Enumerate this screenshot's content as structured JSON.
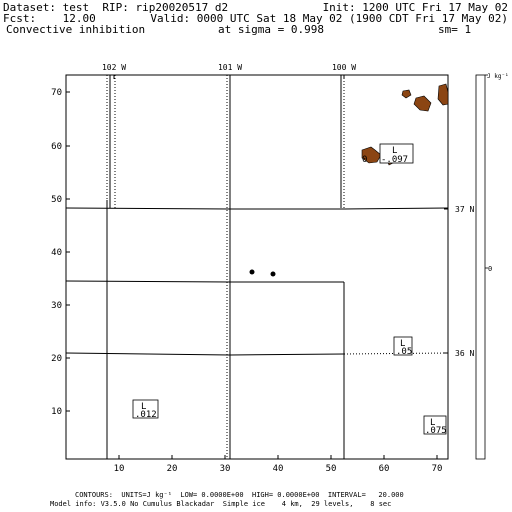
{
  "header": {
    "dataset": "Dataset: test  RIP: rip20020517 d2",
    "init": "Init: 1200 UTC Fri 17 May 02",
    "fcst": "Fcst:    12.00",
    "valid": "Valid: 0000 UTC Sat 18 May 02 (1900 CDT Fri 17 May 02)",
    "field": "Convective inhibition",
    "level": "at sigma = 0.998",
    "member": "sm= 1"
  },
  "plot": {
    "top_lon_labels": [
      "102 W",
      "101 W",
      "100 W"
    ],
    "right_lat_labels": [
      "37 N",
      "36 N"
    ],
    "x_ticks": [
      "10",
      "20",
      "30",
      "40",
      "50",
      "60",
      "70"
    ],
    "y_ticks": [
      "70",
      "60",
      "50",
      "40",
      "30",
      "20",
      "10"
    ],
    "low_labels": [
      {
        "L": "L",
        "val": "-.097"
      },
      {
        "L": "L",
        "val": ".05"
      },
      {
        "L": "L",
        "val": ".012"
      },
      {
        "L": "L",
        "val": ".075"
      }
    ],
    "partial_label": "0"
  },
  "colorbar": {
    "top_label": "J kg⁻¹",
    "mid_label": "0"
  },
  "footer": {
    "line1": "CONTOURS:  UNITS=J kg⁻¹  LOW= 0.0000E+00  HIGH= 0.0000E+00  INTERVAL=   20.000",
    "line2": "Model info: V3.5.0 No Cumulus Blackadar  Simple ice    4 km,  29 levels,    8 sec"
  },
  "colors": {
    "shading": "#8B4513",
    "line": "#000000"
  }
}
